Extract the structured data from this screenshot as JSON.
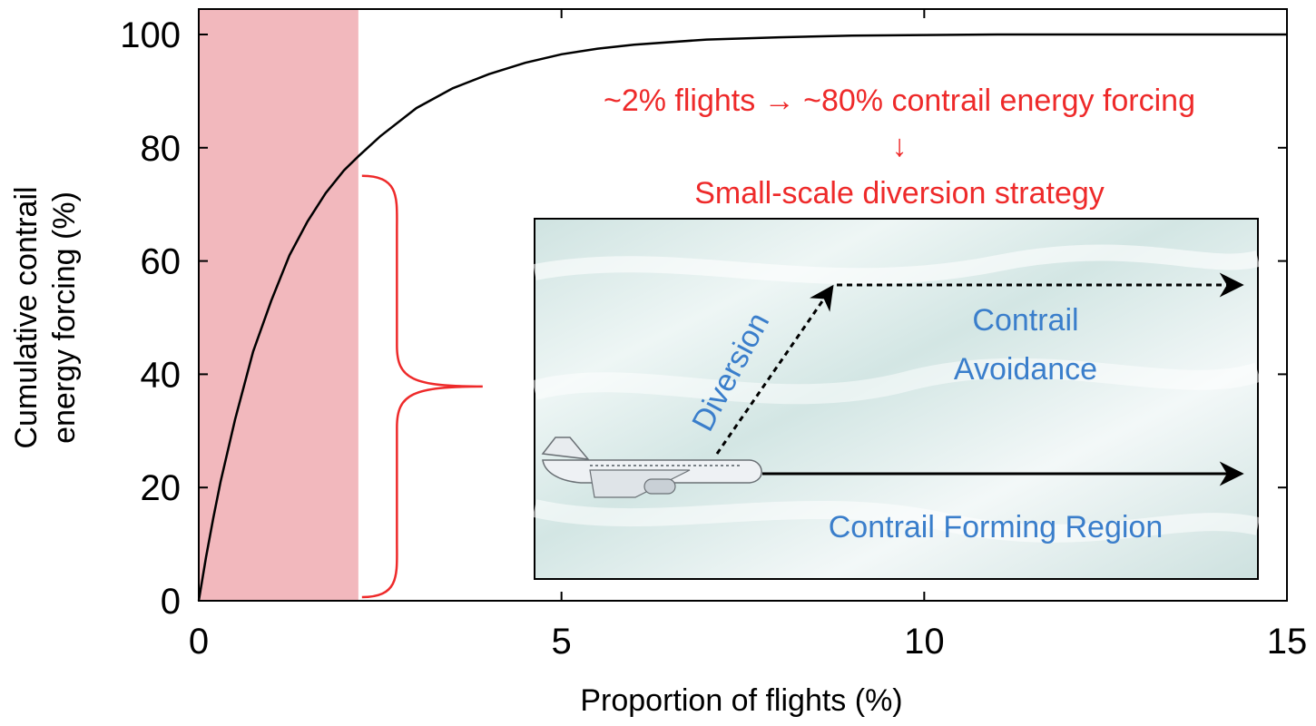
{
  "chart_data": {
    "type": "line",
    "xlabel": "Proportion of flights (%)",
    "ylabel_lines": [
      "Cumulative contrail",
      "energy forcing (%)"
    ],
    "xlim": [
      0,
      15
    ],
    "ylim": [
      0,
      100
    ],
    "x_ticks": [
      0,
      5,
      10,
      15
    ],
    "y_ticks": [
      0,
      20,
      40,
      60,
      80,
      100
    ],
    "grid": false,
    "series": [
      {
        "x": [
          0,
          0.1,
          0.2,
          0.3,
          0.5,
          0.75,
          1.0,
          1.25,
          1.5,
          1.75,
          2.0,
          2.2,
          2.5,
          3.0,
          3.5,
          4.0,
          4.5,
          5.0,
          5.5,
          6.0,
          7.0,
          8.0,
          9.0,
          10.0,
          11.0,
          12.0,
          13.0,
          14.0,
          15.0
        ],
        "y": [
          0,
          7.7,
          14.6,
          21,
          32,
          44,
          53,
          61,
          67,
          72,
          76,
          78.5,
          82,
          87,
          90.5,
          93,
          95,
          96.5,
          97.5,
          98.2,
          99.1,
          99.5,
          99.8,
          99.9,
          100,
          100,
          100,
          100,
          100
        ]
      }
    ],
    "highlight_region": {
      "x_from": 0,
      "x_to": 2.2,
      "color": "#f2b8bd"
    },
    "brace": {
      "x": 2.5,
      "y_from": 0,
      "y_to": 76,
      "color": "#ee2a2a"
    },
    "annotations": {
      "line1": "~2% flights → ~80% contrail energy forcing",
      "arrow": "↓",
      "line2": "Small-scale diversion strategy",
      "color": "#ee2a2a"
    },
    "inset": {
      "diversion_label": "Diversion",
      "avoidance_line1": "Contrail",
      "avoidance_line2": "Avoidance",
      "forming_label": "Contrail Forming Region",
      "label_color": "#3a7ecb",
      "background_color": "#dcebea"
    }
  }
}
